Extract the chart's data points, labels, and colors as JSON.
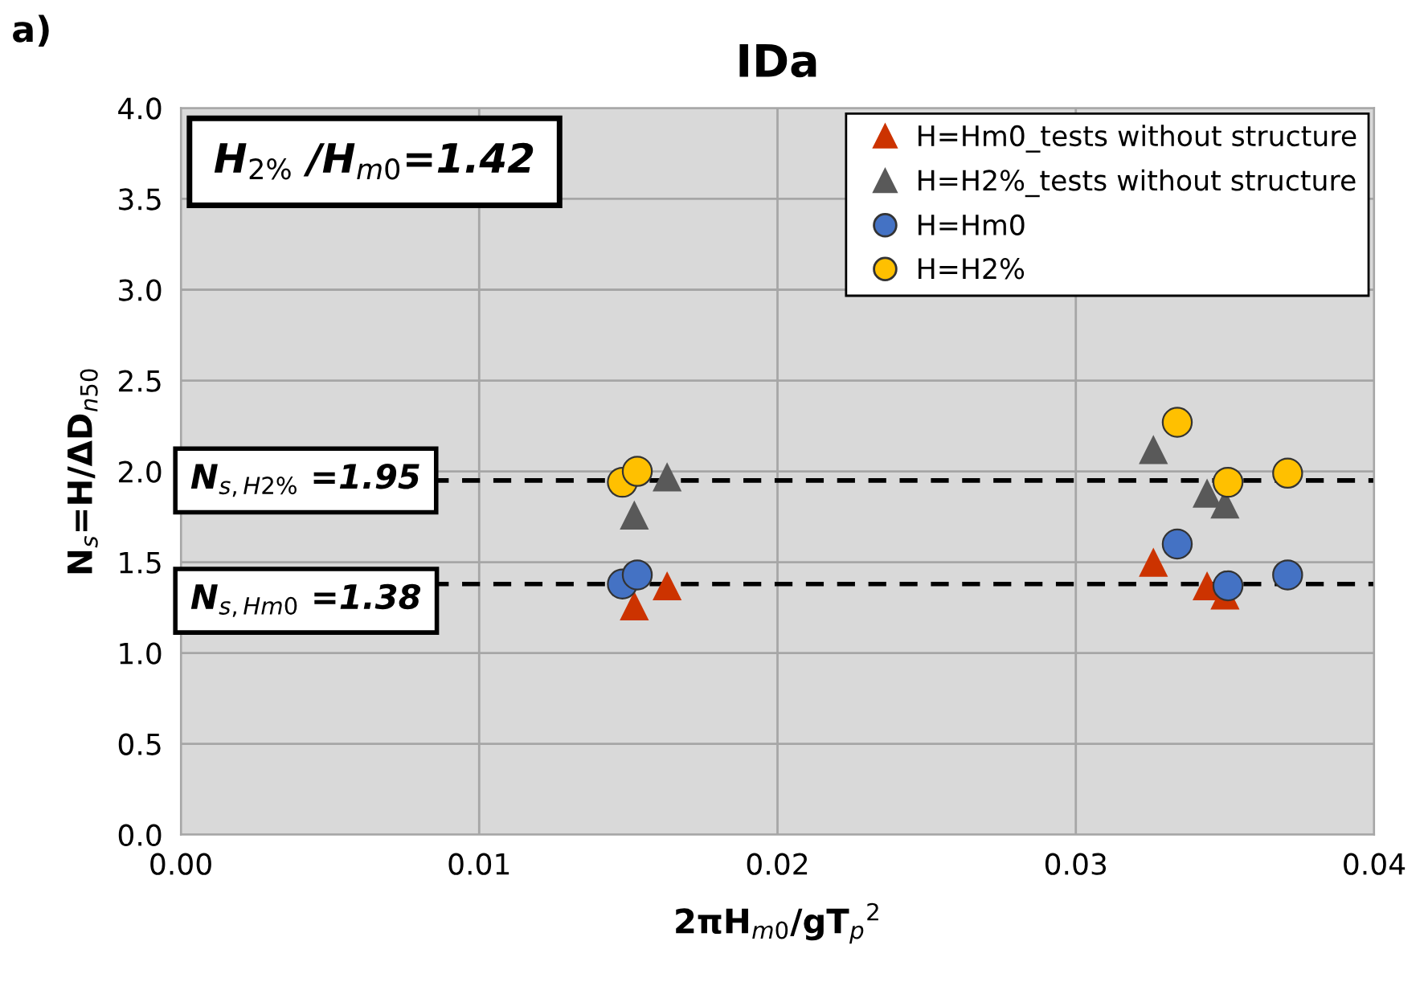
{
  "chart_data": {
    "type": "scatter",
    "title": "IDa",
    "xlabel": "2πH$_{m0}$/gT$_{p}$$^{2}$",
    "ylabel": "N$_{s}$=H/ΔD$_{n50}$",
    "xlim": [
      0,
      0.04
    ],
    "xticks": [
      {
        "value": 0,
        "label": "0.00"
      },
      {
        "value": 0.01,
        "label": "0.01"
      },
      {
        "value": 0.02,
        "label": "0.02"
      },
      {
        "value": 0.03,
        "label": "0.03"
      },
      {
        "value": 0.04,
        "label": "0.04"
      }
    ],
    "ylim": [
      0,
      4
    ],
    "yticks": [
      {
        "value": 0,
        "label": "0.0"
      },
      {
        "value": 0.5,
        "label": "0.5"
      },
      {
        "value": 1,
        "label": "1.0"
      },
      {
        "value": 1.5,
        "label": "1.5"
      },
      {
        "value": 2,
        "label": "2.0"
      },
      {
        "value": 2.5,
        "label": "2.5"
      },
      {
        "value": 3,
        "label": "3.0"
      },
      {
        "value": 3.5,
        "label": "3.5"
      },
      {
        "value": 4,
        "label": "4.0"
      }
    ],
    "grid": true,
    "legend": "top right",
    "series": [
      {
        "name": "H=Hm0_tests without structure",
        "color": "#cc3300",
        "marker": "triangle",
        "x": [
          0.0152,
          0.0163,
          0.0326,
          0.0344,
          0.035
        ],
        "values": [
          1.26,
          1.37,
          1.5,
          1.37,
          1.32
        ]
      },
      {
        "name": "H=H2%_tests without structure",
        "color": "#595959",
        "marker": "triangle",
        "x": [
          0.0152,
          0.0163,
          0.0326,
          0.0344,
          0.035
        ],
        "values": [
          1.76,
          1.97,
          2.12,
          1.88,
          1.82
        ]
      },
      {
        "name": "H=Hm0",
        "color": "#4472c4",
        "marker": "circle",
        "x": [
          0.0148,
          0.0153,
          0.0334,
          0.0351,
          0.0371
        ],
        "values": [
          1.38,
          1.43,
          1.6,
          1.37,
          1.43
        ]
      },
      {
        "name": "H=H2%",
        "color": "#ffc000",
        "marker": "circle",
        "x": [
          0.0148,
          0.0153,
          0.0334,
          0.0351,
          0.0371
        ],
        "values": [
          1.94,
          2.0,
          2.27,
          1.94,
          1.99
        ]
      }
    ],
    "ref_lines": [
      {
        "axis": "y",
        "value": 1.95,
        "label": "N$_{s,H2%}$ =1.95",
        "color": "#000000",
        "line_style": "dashed"
      },
      {
        "axis": "y",
        "value": 1.38,
        "label": "N$_{s,Hm0}$ =1.38",
        "color": "#000000",
        "line_style": "dashed"
      }
    ],
    "annotations": [
      "a)",
      "H$_{2%}$ /H$_{m0}$=1.42"
    ]
  }
}
